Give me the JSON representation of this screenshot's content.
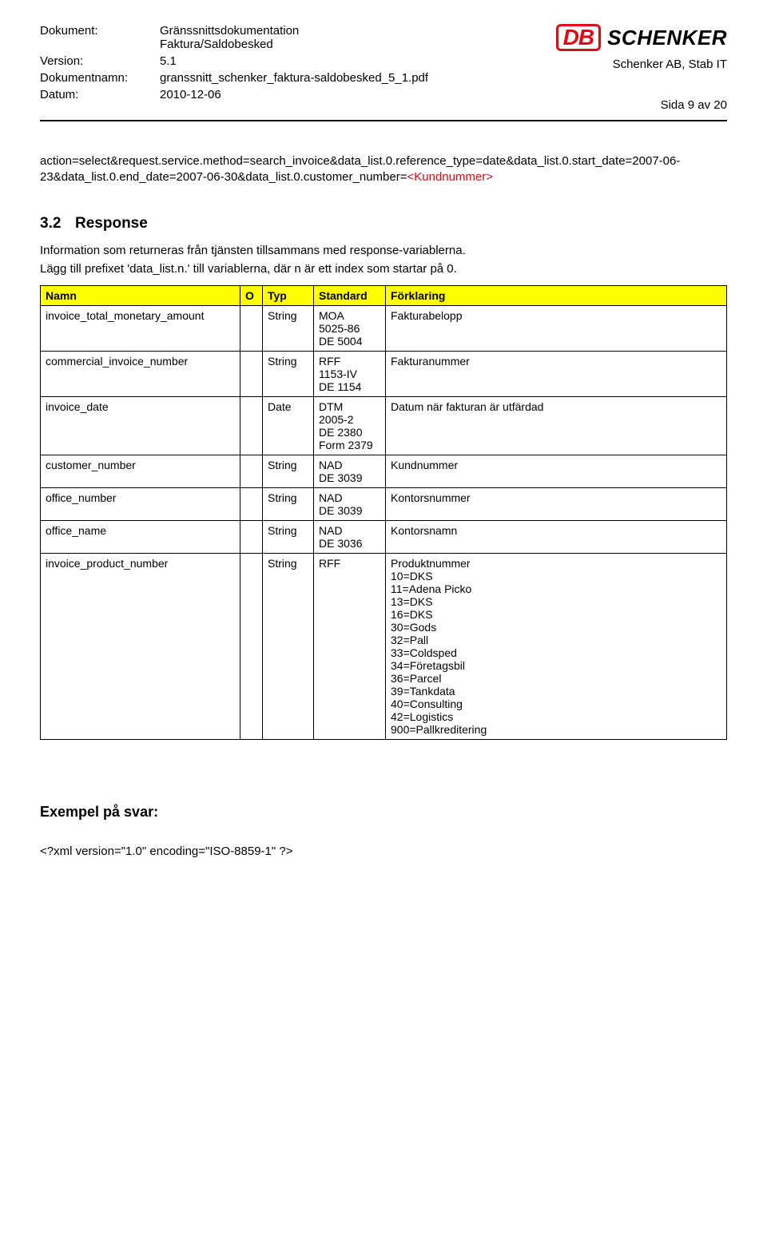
{
  "header": {
    "labels": {
      "dokument": "Dokument:",
      "version": "Version:",
      "dokumentnamn": "Dokumentnamn:",
      "datum": "Datum:"
    },
    "values": {
      "dokument_line1": "Gränssnittsdokumentation",
      "dokument_line2": "Faktura/Saldobesked",
      "version": "5.1",
      "dokumentnamn": "granssnitt_schenker_faktura-saldobesked_5_1.pdf",
      "datum": "2010-12-06"
    },
    "logo": {
      "db": "DB",
      "schenker": "SCHENKER"
    },
    "schenker_ab": "Schenker AB, Stab IT",
    "sida": "Sida 9 av 20"
  },
  "url_block": {
    "line1": "action=select&request.service.method=search_invoice&data_list.0.reference_type=date&data_list.0.start_date=2007-06-23&data_list.0.end_date=2007-06-30&data_list.0.customer_number=",
    "kund": "<Kundnummer>"
  },
  "section": {
    "num": "3.2",
    "title": "Response",
    "desc1": "Information som returneras från tjänsten tillsammans med response-variablerna.",
    "desc2": "Lägg till prefixet 'data_list.n.' till variablerna, där n är ett index som startar på 0."
  },
  "table": {
    "headers": {
      "namn": "Namn",
      "o": "O",
      "typ": "Typ",
      "standard": "Standard",
      "forklaring": "Förklaring"
    },
    "header_bg": "#ffff00",
    "rows": [
      {
        "namn": "invoice_total_monetary_amount",
        "o": "",
        "typ": "String",
        "standard": "MOA\n5025-86\nDE 5004",
        "forklaring": "Fakturabelopp"
      },
      {
        "namn": "commercial_invoice_number",
        "o": "",
        "typ": "String",
        "standard": "RFF\n1153-IV\nDE 1154",
        "forklaring": "Fakturanummer"
      },
      {
        "namn": "invoice_date",
        "o": "",
        "typ": "Date",
        "standard": "DTM\n2005-2\nDE 2380\nForm 2379",
        "forklaring": "Datum när fakturan är utfärdad"
      },
      {
        "namn": "customer_number",
        "o": "",
        "typ": "String",
        "standard": "NAD\nDE 3039",
        "forklaring": "Kundnummer"
      },
      {
        "namn": "office_number",
        "o": "",
        "typ": "String",
        "standard": "NAD\nDE 3039",
        "forklaring": "Kontorsnummer"
      },
      {
        "namn": "office_name",
        "o": "",
        "typ": "String",
        "standard": "NAD\nDE 3036",
        "forklaring": "Kontorsnamn"
      },
      {
        "namn": "invoice_product_number",
        "o": "",
        "typ": "String",
        "standard": "RFF",
        "forklaring": "Produktnummer\n10=DKS\n11=Adena Picko\n13=DKS\n16=DKS\n30=Gods\n32=Pall\n33=Coldsped\n34=Företagsbil\n36=Parcel\n39=Tankdata\n40=Consulting\n42=Logistics\n900=Pallkreditering"
      }
    ]
  },
  "footer": {
    "heading": "Exempel på svar:",
    "code": "<?xml version=\"1.0\" encoding=\"ISO-8859-1\" ?>"
  }
}
